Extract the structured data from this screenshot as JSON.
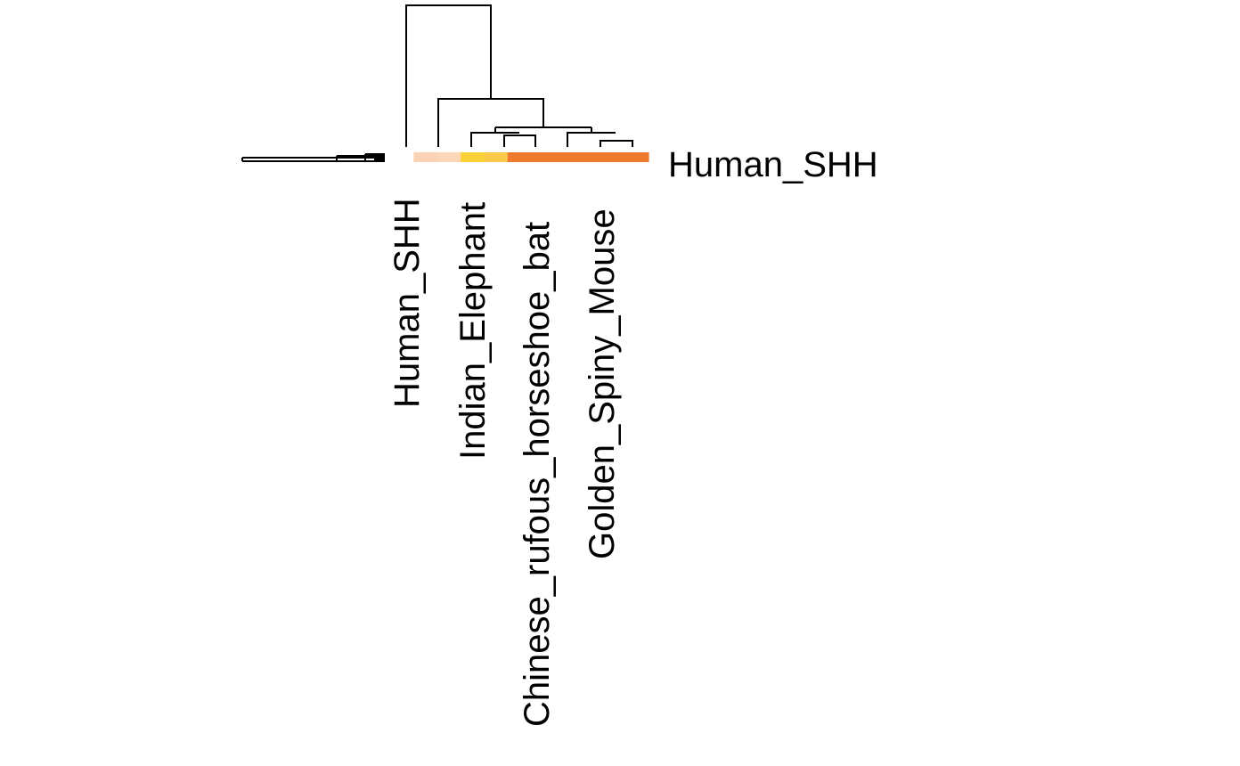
{
  "chart_data": {
    "type": "heatmap",
    "title": "",
    "rows": [
      "Human_SHH"
    ],
    "columns_labeled": [
      "Human_SHH",
      "Indian_Elephant",
      "Chinese_rufous_horseshoe_bat",
      "Golden_Spiny_Mouse"
    ],
    "row_label": "Human_SHH",
    "column_count": 11,
    "cell_colors": [
      "#ffffff",
      "#fcd2b5",
      "#fdd6b8",
      "#fbd13a",
      "#f9c94a",
      "#f07a2c",
      "#f07a2c",
      "#f07a2c",
      "#f07a2c",
      "#f07a2c",
      "#f07a2c"
    ],
    "row_dendrogram": true,
    "column_dendrogram": true,
    "legend": "none",
    "grid": false
  },
  "colors": {
    "background": "#ffffff",
    "tree": "#000000",
    "heat_low": "#fcd2b5",
    "heat_mid": "#fbd13a",
    "heat_high": "#f07a2c"
  }
}
